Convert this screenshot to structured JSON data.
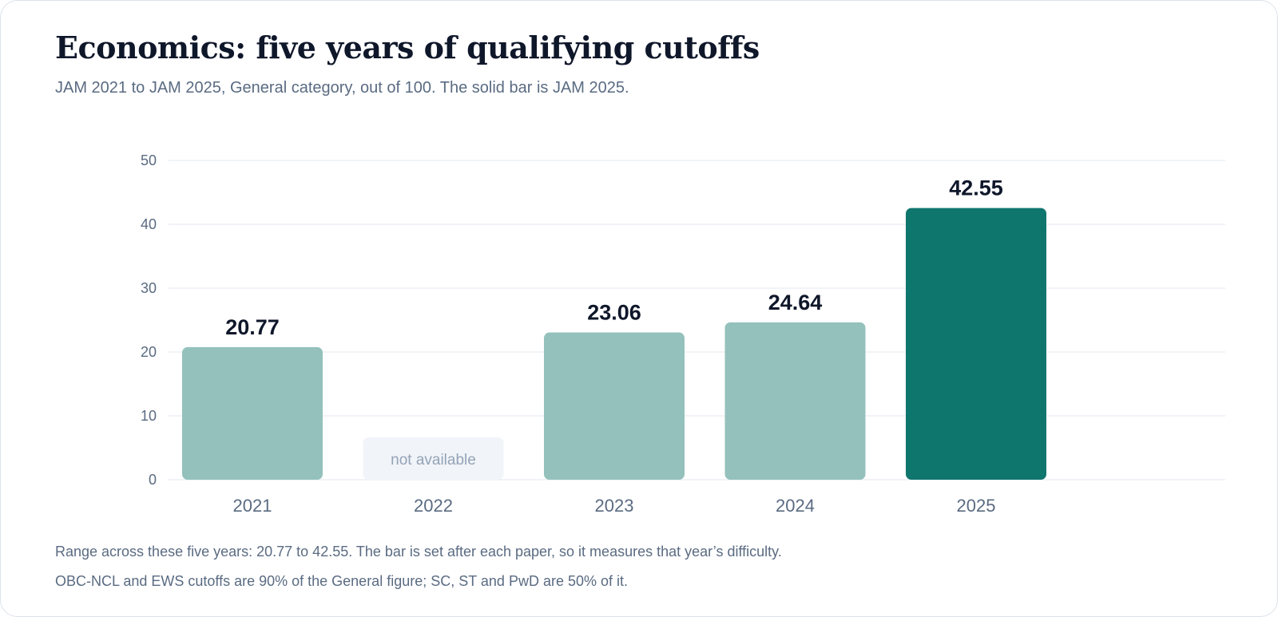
{
  "header": {
    "title": "Economics: five years of qualifying cutoffs",
    "subtitle": "JAM 2021 to JAM 2025, General category, out of 100. The solid bar is JAM 2025."
  },
  "footer": {
    "note_range": "Range across these five years: 20.77 to 42.55. The bar is set after each paper, so it measures that year’s difficulty.",
    "note_categories": "OBC-NCL and EWS cutoffs are 90% of the General figure; SC, ST and PwD are 50% of it."
  },
  "chart_data": {
    "type": "bar",
    "title": "Economics: five years of qualifying cutoffs",
    "subtitle": "JAM 2021 to JAM 2025, General category, out of 100. The solid bar is JAM 2025.",
    "xlabel": "",
    "ylabel": "",
    "categories": [
      "2021",
      "2022",
      "2023",
      "2024",
      "2025"
    ],
    "values": [
      20.77,
      null,
      23.06,
      24.64,
      42.55
    ],
    "value_labels": [
      "20.77",
      "not available",
      "23.06",
      "24.64",
      "42.55"
    ],
    "highlight": "2025",
    "ylim": [
      0,
      50
    ],
    "yticks": [
      0,
      10,
      20,
      30,
      40,
      50
    ],
    "grid": true,
    "legend": "none",
    "colors": {
      "bar": "#94c1bc",
      "highlight_bar": "#0f766e",
      "missing_bar": "#f1f4f8",
      "missing_text": "#94a3b8",
      "value_label": "#0f172a",
      "axis_text": "#5a6b82",
      "grid": "#e2e8f0"
    }
  }
}
